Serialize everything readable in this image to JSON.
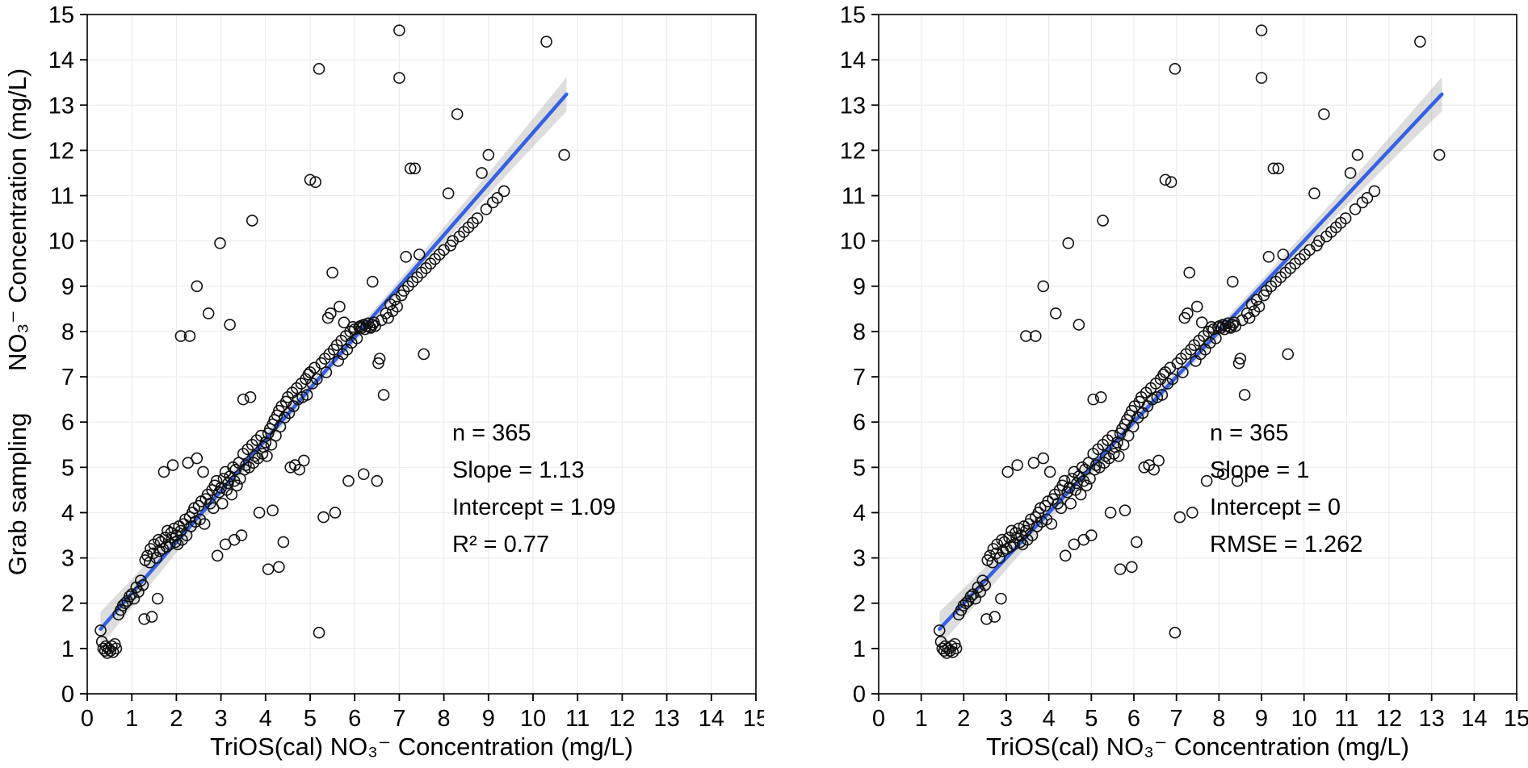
{
  "colors": {
    "background": "#ffffff",
    "line": "#3560e4",
    "band": "#9e9e9e",
    "point": "#111111",
    "grid": "#ebebeb",
    "axis": "#000000",
    "text": "#000000"
  },
  "chart_data": [
    {
      "type": "scatter",
      "panel": "left",
      "xlabel": "TriOS(cal) NO₃⁻ Concentration (mg/L)",
      "ylabel": "Grab sampling      NO₃⁻ Concentration (mg/L)",
      "xlim": [
        0,
        15
      ],
      "ylim": [
        0,
        15
      ],
      "xticks": [
        0,
        1,
        2,
        3,
        4,
        5,
        6,
        7,
        8,
        9,
        10,
        11,
        12,
        13,
        14,
        15
      ],
      "yticks": [
        0,
        1,
        2,
        3,
        4,
        5,
        6,
        7,
        8,
        9,
        10,
        11,
        12,
        13,
        14,
        15
      ],
      "grid": true,
      "legend": "none",
      "stats": {
        "n": 365,
        "slope": 1.13,
        "intercept": 1.09,
        "r_squared": 0.77
      },
      "annotation": [
        "n = 365",
        "Slope = 1.13",
        "Intercept = 1.09",
        "R² = 0.77"
      ],
      "fit_line": {
        "slope": 1.13,
        "intercept": 1.09,
        "x_range": [
          0.3,
          10.75
        ]
      },
      "ci_band": {
        "center_halfwidth": 0.12,
        "end_halfwidth": 0.38
      },
      "point_transform": {
        "x_scale": 1,
        "x_offset": 0
      }
    },
    {
      "type": "scatter",
      "panel": "right",
      "xlabel": "TriOS(cal) NO₃⁻ Concentration (mg/L)",
      "ylabel": "",
      "xlim": [
        0,
        15
      ],
      "ylim": [
        0,
        15
      ],
      "xticks": [
        0,
        1,
        2,
        3,
        4,
        5,
        6,
        7,
        8,
        9,
        10,
        11,
        12,
        13,
        14,
        15
      ],
      "yticks": [
        0,
        1,
        2,
        3,
        4,
        5,
        6,
        7,
        8,
        9,
        10,
        11,
        12,
        13,
        14,
        15
      ],
      "grid": true,
      "legend": "none",
      "stats": {
        "n": 365,
        "slope": 1,
        "intercept": 0,
        "rmse": 1.262
      },
      "annotation": [
        "n = 365",
        "Slope = 1",
        "Intercept = 0",
        "RMSE = 1.262"
      ],
      "fit_line": {
        "slope": 1,
        "intercept": 0,
        "x_range": [
          1.43,
          13.24
        ]
      },
      "ci_band": {
        "center_halfwidth": 0.12,
        "end_halfwidth": 0.38
      },
      "point_transform": {
        "x_scale": 1.13,
        "x_offset": 1.09
      }
    }
  ],
  "shared_points": [
    [
      0.3,
      1.4
    ],
    [
      0.33,
      1.15
    ],
    [
      0.36,
      1.0
    ],
    [
      0.4,
      0.95
    ],
    [
      0.42,
      1.05
    ],
    [
      0.45,
      0.9
    ],
    [
      0.48,
      1.0
    ],
    [
      0.52,
      0.95
    ],
    [
      0.55,
      1.05
    ],
    [
      0.58,
      0.92
    ],
    [
      0.62,
      1.1
    ],
    [
      0.65,
      1.0
    ],
    [
      0.7,
      1.75
    ],
    [
      0.75,
      1.85
    ],
    [
      0.8,
      1.95
    ],
    [
      0.85,
      2.0
    ],
    [
      0.9,
      2.05
    ],
    [
      0.95,
      2.15
    ],
    [
      1.0,
      2.2
    ],
    [
      1.05,
      2.1
    ],
    [
      1.1,
      2.35
    ],
    [
      1.15,
      2.25
    ],
    [
      1.2,
      2.5
    ],
    [
      1.25,
      2.4
    ],
    [
      1.28,
      1.65
    ],
    [
      1.3,
      2.95
    ],
    [
      1.35,
      3.05
    ],
    [
      1.4,
      2.9
    ],
    [
      1.42,
      3.2
    ],
    [
      1.45,
      1.7
    ],
    [
      1.48,
      3.1
    ],
    [
      1.5,
      3.3
    ],
    [
      1.55,
      3.0
    ],
    [
      1.58,
      2.1
    ],
    [
      1.6,
      3.4
    ],
    [
      1.62,
      3.15
    ],
    [
      1.65,
      3.35
    ],
    [
      1.7,
      3.2
    ],
    [
      1.72,
      4.9
    ],
    [
      1.75,
      3.45
    ],
    [
      1.78,
      3.25
    ],
    [
      1.8,
      3.6
    ],
    [
      1.85,
      3.3
    ],
    [
      1.88,
      3.55
    ],
    [
      1.9,
      3.45
    ],
    [
      1.92,
      5.05
    ],
    [
      1.95,
      3.65
    ],
    [
      1.98,
      3.35
    ],
    [
      2.0,
      3.5
    ],
    [
      2.03,
      3.3
    ],
    [
      2.06,
      3.7
    ],
    [
      2.1,
      3.6
    ],
    [
      2.1,
      7.9
    ],
    [
      2.13,
      3.4
    ],
    [
      2.16,
      3.75
    ],
    [
      2.2,
      3.85
    ],
    [
      2.23,
      3.5
    ],
    [
      2.26,
      5.1
    ],
    [
      2.3,
      3.9
    ],
    [
      2.3,
      7.9
    ],
    [
      2.33,
      3.7
    ],
    [
      2.36,
      4.0
    ],
    [
      2.4,
      4.1
    ],
    [
      2.43,
      3.8
    ],
    [
      2.46,
      5.2
    ],
    [
      2.46,
      9.0
    ],
    [
      2.5,
      4.15
    ],
    [
      2.53,
      3.85
    ],
    [
      2.56,
      4.25
    ],
    [
      2.6,
      4.9
    ],
    [
      2.63,
      3.75
    ],
    [
      2.66,
      4.3
    ],
    [
      2.7,
      4.4
    ],
    [
      2.72,
      8.4
    ],
    [
      2.76,
      4.2
    ],
    [
      2.8,
      4.5
    ],
    [
      2.83,
      4.1
    ],
    [
      2.86,
      4.6
    ],
    [
      2.9,
      4.7
    ],
    [
      2.92,
      3.05
    ],
    [
      2.96,
      4.45
    ],
    [
      2.98,
      9.95
    ],
    [
      3.0,
      4.55
    ],
    [
      3.03,
      4.2
    ],
    [
      3.06,
      4.75
    ],
    [
      3.1,
      4.9
    ],
    [
      3.1,
      3.3
    ],
    [
      3.13,
      4.5
    ],
    [
      3.16,
      4.65
    ],
    [
      3.2,
      8.15
    ],
    [
      3.2,
      4.8
    ],
    [
      3.24,
      4.4
    ],
    [
      3.27,
      5.0
    ],
    [
      3.3,
      4.7
    ],
    [
      3.3,
      3.4
    ],
    [
      3.33,
      4.95
    ],
    [
      3.36,
      4.6
    ],
    [
      3.4,
      5.1
    ],
    [
      3.43,
      4.75
    ],
    [
      3.46,
      3.5
    ],
    [
      3.5,
      5.3
    ],
    [
      3.5,
      6.5
    ],
    [
      3.53,
      4.95
    ],
    [
      3.56,
      5.05
    ],
    [
      3.6,
      5.4
    ],
    [
      3.63,
      5.0
    ],
    [
      3.66,
      6.55
    ],
    [
      3.7,
      10.45
    ],
    [
      3.7,
      5.5
    ],
    [
      3.73,
      5.1
    ],
    [
      3.76,
      5.25
    ],
    [
      3.8,
      5.6
    ],
    [
      3.83,
      5.2
    ],
    [
      3.86,
      4.0
    ],
    [
      3.9,
      5.7
    ],
    [
      3.93,
      5.3
    ],
    [
      3.96,
      5.45
    ],
    [
      4.0,
      5.55
    ],
    [
      4.03,
      5.25
    ],
    [
      4.06,
      5.75
    ],
    [
      4.06,
      2.75
    ],
    [
      4.1,
      5.85
    ],
    [
      4.13,
      5.5
    ],
    [
      4.16,
      5.95
    ],
    [
      4.16,
      4.05
    ],
    [
      4.2,
      6.05
    ],
    [
      4.23,
      5.7
    ],
    [
      4.26,
      6.15
    ],
    [
      4.3,
      6.25
    ],
    [
      4.3,
      2.8
    ],
    [
      4.33,
      5.9
    ],
    [
      4.36,
      6.35
    ],
    [
      4.4,
      3.35
    ],
    [
      4.43,
      6.1
    ],
    [
      4.46,
      6.45
    ],
    [
      4.5,
      6.55
    ],
    [
      4.53,
      6.2
    ],
    [
      4.56,
      5.0
    ],
    [
      4.6,
      6.65
    ],
    [
      4.63,
      6.35
    ],
    [
      4.66,
      5.05
    ],
    [
      4.7,
      6.75
    ],
    [
      4.73,
      6.5
    ],
    [
      4.76,
      4.95
    ],
    [
      4.8,
      6.85
    ],
    [
      4.83,
      6.55
    ],
    [
      4.86,
      5.15
    ],
    [
      4.9,
      6.95
    ],
    [
      4.93,
      6.6
    ],
    [
      4.96,
      7.05
    ],
    [
      5.0,
      7.1
    ],
    [
      5.0,
      11.35
    ],
    [
      5.05,
      6.85
    ],
    [
      5.1,
      7.2
    ],
    [
      5.12,
      11.3
    ],
    [
      5.15,
      6.95
    ],
    [
      5.2,
      13.8
    ],
    [
      5.2,
      1.35
    ],
    [
      5.25,
      7.3
    ],
    [
      5.3,
      3.9
    ],
    [
      5.33,
      7.4
    ],
    [
      5.36,
      7.1
    ],
    [
      5.4,
      8.3
    ],
    [
      5.43,
      7.5
    ],
    [
      5.46,
      8.4
    ],
    [
      5.5,
      9.3
    ],
    [
      5.53,
      7.6
    ],
    [
      5.56,
      4.0
    ],
    [
      5.6,
      7.7
    ],
    [
      5.63,
      7.35
    ],
    [
      5.66,
      8.55
    ],
    [
      5.7,
      7.8
    ],
    [
      5.73,
      7.5
    ],
    [
      5.76,
      8.2
    ],
    [
      5.8,
      7.9
    ],
    [
      5.83,
      7.6
    ],
    [
      5.86,
      4.7
    ],
    [
      5.9,
      8.0
    ],
    [
      5.93,
      7.75
    ],
    [
      5.96,
      8.1
    ],
    [
      6.0,
      8.05
    ],
    [
      6.05,
      7.85
    ],
    [
      6.1,
      8.1
    ],
    [
      6.13,
      8.12
    ],
    [
      6.16,
      8.08
    ],
    [
      6.2,
      8.15
    ],
    [
      6.2,
      4.85
    ],
    [
      6.23,
      8.05
    ],
    [
      6.26,
      8.12
    ],
    [
      6.3,
      8.18
    ],
    [
      6.33,
      8.1
    ],
    [
      6.36,
      8.08
    ],
    [
      6.4,
      9.1
    ],
    [
      6.4,
      8.15
    ],
    [
      6.43,
      8.2
    ],
    [
      6.46,
      8.12
    ],
    [
      6.5,
      4.7
    ],
    [
      6.53,
      7.3
    ],
    [
      6.56,
      7.4
    ],
    [
      6.6,
      8.25
    ],
    [
      6.65,
      6.6
    ],
    [
      6.7,
      8.4
    ],
    [
      6.75,
      8.3
    ],
    [
      6.8,
      8.6
    ],
    [
      6.85,
      8.45
    ],
    [
      6.9,
      8.7
    ],
    [
      6.95,
      8.55
    ],
    [
      7.0,
      14.65
    ],
    [
      7.0,
      13.6
    ],
    [
      7.05,
      8.8
    ],
    [
      7.1,
      8.9
    ],
    [
      7.15,
      9.65
    ],
    [
      7.2,
      9.0
    ],
    [
      7.25,
      11.6
    ],
    [
      7.3,
      9.1
    ],
    [
      7.35,
      11.6
    ],
    [
      7.4,
      9.2
    ],
    [
      7.45,
      9.7
    ],
    [
      7.5,
      9.3
    ],
    [
      7.55,
      7.5
    ],
    [
      7.6,
      9.4
    ],
    [
      7.7,
      9.5
    ],
    [
      7.8,
      9.6
    ],
    [
      7.9,
      9.7
    ],
    [
      8.0,
      9.8
    ],
    [
      8.1,
      11.05
    ],
    [
      8.15,
      9.9
    ],
    [
      8.2,
      10.0
    ],
    [
      8.3,
      12.8
    ],
    [
      8.35,
      10.1
    ],
    [
      8.45,
      10.2
    ],
    [
      8.55,
      10.3
    ],
    [
      8.65,
      10.4
    ],
    [
      8.75,
      10.5
    ],
    [
      8.85,
      11.5
    ],
    [
      8.95,
      10.7
    ],
    [
      9.0,
      11.9
    ],
    [
      9.1,
      10.85
    ],
    [
      9.2,
      10.95
    ],
    [
      9.35,
      11.1
    ],
    [
      10.3,
      14.4
    ],
    [
      10.7,
      11.9
    ]
  ]
}
